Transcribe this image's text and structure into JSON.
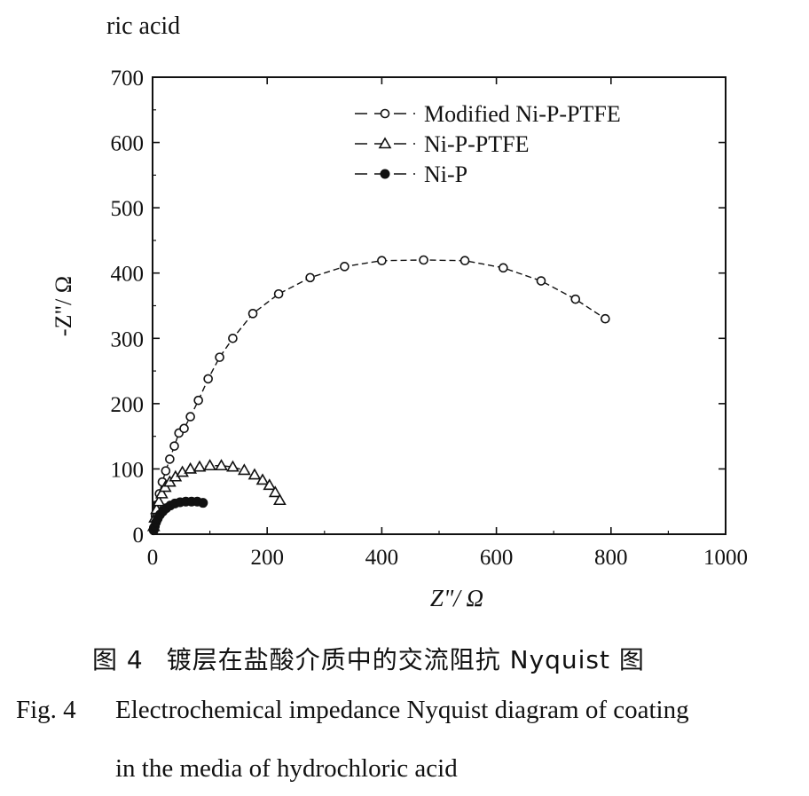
{
  "page": {
    "top_fragment": "ric acid",
    "caption_cn_number": "图 4",
    "caption_cn_text": "镀层在盐酸介质中的交流阻抗 Nyquist 图",
    "caption_en_label": "Fig. 4",
    "caption_en_line1": "Electrochemical impedance Nyquist diagram of coating",
    "caption_en_line2": "in the media of hydrochloric acid"
  },
  "chart_data": {
    "type": "scatter",
    "title": "",
    "xlabel": "Z\"/ Ω",
    "ylabel": "-Z\"/ Ω",
    "xlim": [
      0,
      1000
    ],
    "ylim": [
      0,
      700
    ],
    "xticks": [
      0,
      200,
      400,
      600,
      800,
      1000
    ],
    "yticks": [
      0,
      100,
      200,
      300,
      400,
      500,
      600,
      700
    ],
    "grid": false,
    "legend_position": "top-right",
    "series": [
      {
        "name": "Modified Ni-P-PTFE",
        "marker": "open-circle",
        "line": "dashed",
        "color": "#111111",
        "x": [
          2,
          5,
          8,
          12,
          17,
          23,
          30,
          38,
          46,
          55,
          66,
          80,
          97,
          117,
          140,
          175,
          220,
          275,
          335,
          400,
          473,
          545,
          612,
          678,
          738,
          790
        ],
        "y": [
          10,
          28,
          45,
          62,
          80,
          97,
          115,
          135,
          155,
          162,
          180,
          205,
          238,
          271,
          300,
          338,
          368,
          393,
          410,
          419,
          420,
          419,
          408,
          388,
          360,
          330
        ]
      },
      {
        "name": "Ni-P-PTFE",
        "marker": "open-triangle",
        "line": "dashed",
        "color": "#111111",
        "x": [
          2,
          4,
          7,
          11,
          16,
          22,
          30,
          40,
          52,
          66,
          82,
          100,
          120,
          140,
          160,
          178,
          192,
          204,
          214,
          222
        ],
        "y": [
          12,
          25,
          38,
          50,
          62,
          72,
          80,
          88,
          95,
          100,
          103,
          105,
          105,
          103,
          98,
          91,
          83,
          75,
          64,
          52
        ]
      },
      {
        "name": "Ni-P",
        "marker": "filled-circle",
        "line": "dashed",
        "color": "#111111",
        "x": [
          2,
          4,
          6,
          9,
          13,
          18,
          24,
          31,
          39,
          48,
          58,
          68,
          78,
          88
        ],
        "y": [
          6,
          12,
          18,
          24,
          30,
          35,
          40,
          44,
          47,
          49,
          50,
          50,
          50,
          48
        ]
      }
    ]
  }
}
